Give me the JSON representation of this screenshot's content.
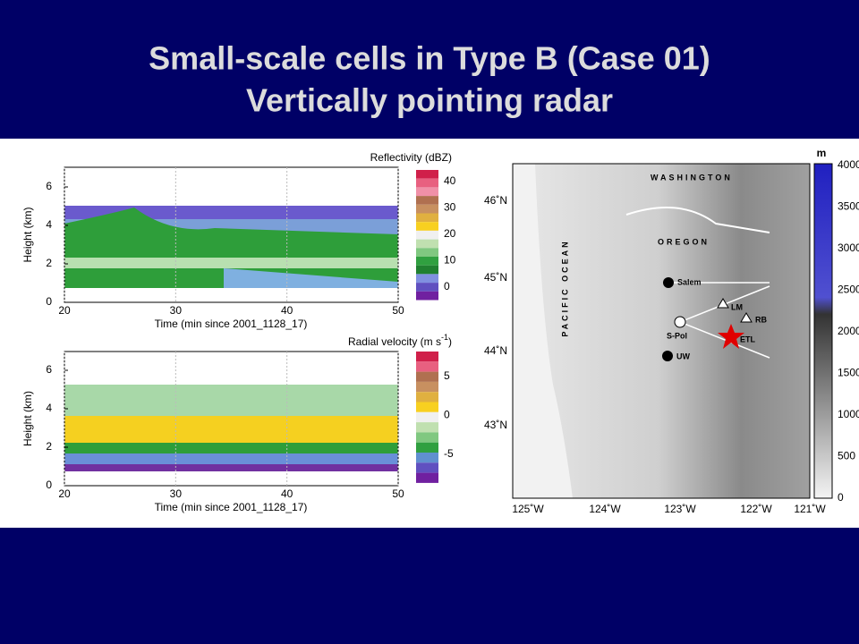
{
  "title": [
    "Small-scale cells in Type B (Case 01)",
    "Vertically pointing radar"
  ],
  "panels": [
    {
      "colorbar_title": "Reflectivity (dBZ)",
      "y_label": "Height (km)",
      "x_label": "Time (min since 2001_1128_17)",
      "y_ticks": [
        "0",
        "2",
        "4",
        "6"
      ],
      "x_ticks": [
        "20",
        "30",
        "40",
        "50"
      ],
      "colorbar_ticks": [
        "40",
        "30",
        "20",
        "10",
        "0"
      ]
    },
    {
      "colorbar_title": "Radial velocity (m s",
      "colorbar_title_sup": "-1",
      "colorbar_title_end": ")",
      "y_label": "Height (km)",
      "x_label": "Time (min since 2001_1128_17)",
      "y_ticks": [
        "0",
        "2",
        "4",
        "6"
      ],
      "x_ticks": [
        "20",
        "30",
        "40",
        "50"
      ],
      "colorbar_ticks": [
        "5",
        "0",
        "-5"
      ]
    }
  ],
  "map": {
    "regions": [
      "WASHINGTON",
      "OREGON",
      "PACIFIC OCEAN"
    ],
    "sites": [
      "Salem",
      "LM",
      "RB",
      "S-Pol",
      "ETL",
      "UW"
    ],
    "lat_labels": [
      "46˚N",
      "45˚N",
      "44˚N",
      "43˚N"
    ],
    "lon_labels": [
      "125˚W",
      "124˚W",
      "123˚W",
      "122˚W",
      "121˚W"
    ],
    "colorbar_unit": "m",
    "colorbar_ticks": [
      "4000",
      "3500",
      "3000",
      "2500",
      "2000",
      "1500",
      "1000",
      "500",
      "0"
    ]
  }
}
